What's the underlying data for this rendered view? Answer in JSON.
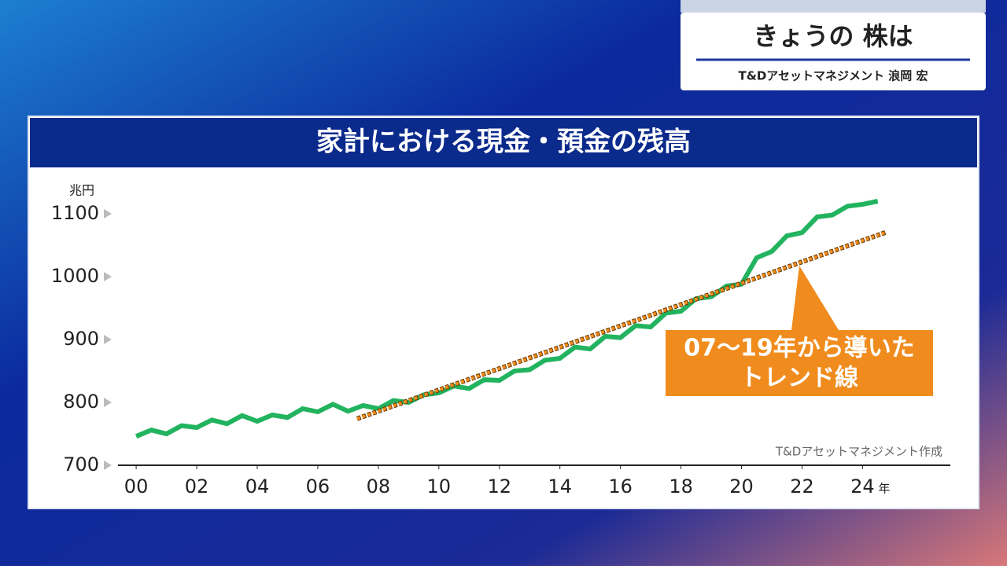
{
  "header": {
    "title": "きょうの 株は",
    "guest": "T&Dアセットマネジメント 浪岡 宏"
  },
  "chart_data": {
    "type": "line",
    "title": "家計における現金・預金の残高",
    "y_unit": "兆円",
    "x_unit": "年",
    "source": "T&Dアセットマネジメント作成",
    "annotation": [
      "07〜19年から導いた",
      "トレンド線"
    ],
    "xlim": [
      -0.6,
      26.9
    ],
    "xticks": [
      {
        "value": 0,
        "label": "00"
      },
      {
        "value": 2,
        "label": "02"
      },
      {
        "value": 4,
        "label": "04"
      },
      {
        "value": 6,
        "label": "06"
      },
      {
        "value": 8,
        "label": "08"
      },
      10,
      12,
      14,
      16,
      18,
      20,
      22,
      24
    ],
    "ylim": [
      700,
      1140
    ],
    "yticks": [
      700,
      800,
      900,
      1000,
      1100
    ],
    "series": [
      {
        "color": "#22b35e",
        "style": "solid",
        "x": [
          0,
          0.5,
          1,
          1.5,
          2,
          2.5,
          3,
          3.5,
          4,
          4.5,
          5,
          5.5,
          6,
          6.5,
          7,
          7.5,
          8,
          8.5,
          9,
          9.5,
          10,
          10.5,
          11,
          11.5,
          12,
          12.5,
          13,
          13.5,
          14,
          14.5,
          15,
          15.5,
          16,
          16.5,
          17,
          17.5,
          18,
          18.5,
          19,
          19.5,
          20,
          20.5,
          21,
          21.5,
          22,
          22.5,
          23,
          23.5,
          24,
          24.5
        ],
        "values": [
          746,
          756,
          750,
          763,
          760,
          772,
          766,
          779,
          770,
          780,
          776,
          790,
          785,
          797,
          786,
          795,
          790,
          803,
          800,
          812,
          815,
          826,
          822,
          836,
          835,
          850,
          852,
          867,
          870,
          888,
          885,
          905,
          903,
          922,
          920,
          942,
          945,
          965,
          968,
          985,
          988,
          1030,
          1040,
          1065,
          1070,
          1095,
          1098,
          1112,
          1115,
          1120
        ]
      },
      {
        "color": "#f08c1e",
        "style": "dotted",
        "x": [
          7.3,
          24.8
        ],
        "values": [
          774,
          1071
        ]
      }
    ]
  }
}
